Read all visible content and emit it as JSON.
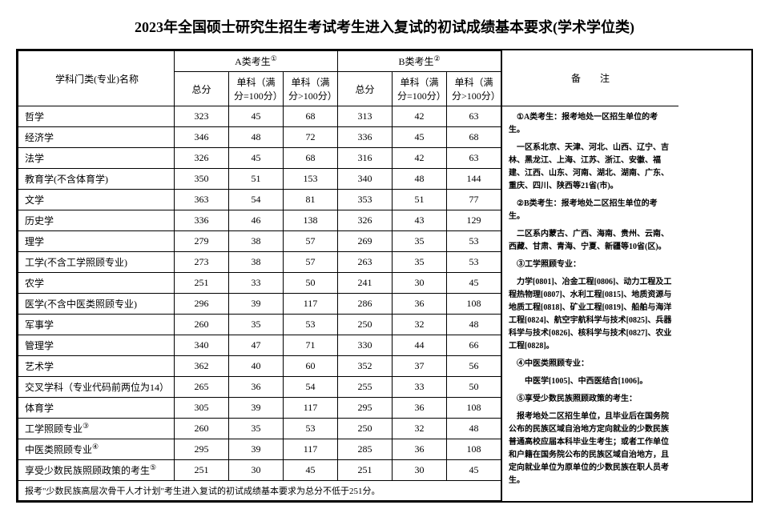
{
  "title": "2023年全国硕士研究生招生考试考生进入复试的初试成绩基本要求(学术学位类)",
  "headers": {
    "subject": "学科门类(专业)名称",
    "groupA": "A类考生",
    "groupB": "B类考生",
    "total": "总分",
    "sub100": "单科（满分=100分）",
    "subOver": "单科（满分>100分）",
    "notes": "备注",
    "sup1": "①",
    "sup2": "②"
  },
  "rows": [
    {
      "name": "哲学",
      "a": [
        323,
        45,
        68
      ],
      "b": [
        313,
        42,
        63
      ]
    },
    {
      "name": "经济学",
      "a": [
        346,
        48,
        72
      ],
      "b": [
        336,
        45,
        68
      ]
    },
    {
      "name": "法学",
      "a": [
        326,
        45,
        68
      ],
      "b": [
        316,
        42,
        63
      ]
    },
    {
      "name": "教育学(不含体育学)",
      "a": [
        350,
        51,
        153
      ],
      "b": [
        340,
        48,
        144
      ]
    },
    {
      "name": "文学",
      "a": [
        363,
        54,
        81
      ],
      "b": [
        353,
        51,
        77
      ]
    },
    {
      "name": "历史学",
      "a": [
        336,
        46,
        138
      ],
      "b": [
        326,
        43,
        129
      ]
    },
    {
      "name": "理学",
      "a": [
        279,
        38,
        57
      ],
      "b": [
        269,
        35,
        53
      ]
    },
    {
      "name": "工学(不含工学照顾专业)",
      "a": [
        273,
        38,
        57
      ],
      "b": [
        263,
        35,
        53
      ]
    },
    {
      "name": "农学",
      "a": [
        251,
        33,
        50
      ],
      "b": [
        241,
        30,
        45
      ]
    },
    {
      "name": "医学(不含中医类照顾专业)",
      "a": [
        296,
        39,
        117
      ],
      "b": [
        286,
        36,
        108
      ]
    },
    {
      "name": "军事学",
      "a": [
        260,
        35,
        53
      ],
      "b": [
        250,
        32,
        48
      ]
    },
    {
      "name": "管理学",
      "a": [
        340,
        47,
        71
      ],
      "b": [
        330,
        44,
        66
      ]
    },
    {
      "name": "艺术学",
      "a": [
        362,
        40,
        60
      ],
      "b": [
        352,
        37,
        56
      ]
    },
    {
      "name": "交叉学科（专业代码前两位为14）",
      "a": [
        265,
        36,
        54
      ],
      "b": [
        255,
        33,
        50
      ]
    },
    {
      "name": "体育学",
      "a": [
        305,
        39,
        117
      ],
      "b": [
        295,
        36,
        108
      ]
    },
    {
      "name": "工学照顾专业",
      "sup": "③",
      "a": [
        260,
        35,
        53
      ],
      "b": [
        250,
        32,
        48
      ]
    },
    {
      "name": "中医类照顾专业",
      "sup": "④",
      "a": [
        295,
        39,
        117
      ],
      "b": [
        285,
        36,
        108
      ]
    },
    {
      "name": "享受少数民族照顾政策的考生",
      "sup": "⑤",
      "a": [
        251,
        30,
        45
      ],
      "b": [
        251,
        30,
        45
      ]
    }
  ],
  "footnote": "报考\"少数民族高层次骨干人才计划\"考生进入复试的初试成绩基本要求为总分不低于251分。",
  "notes": {
    "n1h": "①A类考生：报考地处一区招生单位的考生。",
    "n1b": "一区系北京、天津、河北、山西、辽宁、吉林、黑龙江、上海、江苏、浙江、安徽、福建、江西、山东、河南、湖北、湖南、广东、重庆、四川、陕西等21省(市)。",
    "n2h": "②B类考生：报考地处二区招生单位的考生。",
    "n2b": "二区系内蒙古、广西、海南、贵州、云南、西藏、甘肃、青海、宁夏、新疆等10省(区)。",
    "n3h": "③工学照顾专业：",
    "n3b": "力学[0801]、冶金工程[0806]、动力工程及工程热物理[0807]、水利工程[0815]、地质资源与地质工程[0818]、矿业工程[0819]、船舶与海洋工程[0824]、航空宇航科学与技术[0825]、兵器科学与技术[0826]、核科学与技术[0827]、农业工程[0828]。",
    "n4h": "④中医类照顾专业：",
    "n4b": "中医学[1005]、中西医结合[1006]。",
    "n5h": "⑤享受少数民族照顾政策的考生：",
    "n5b": "报考地处二区招生单位，且毕业后在国务院公布的民族区域自治地方定向就业的少数民族普通高校应届本科毕业生考生；或者工作单位和户籍在国务院公布的民族区域自治地方，且定向就业单位为原单位的少数民族在职人员考生。"
  },
  "style": {
    "bg": "#ffffff",
    "fg": "#000000",
    "border": "#000000",
    "title_fontsize": 18,
    "body_fontsize": 12,
    "notes_fontsize": 10,
    "col_widths": {
      "subject": 180,
      "score": 55,
      "notes": 220
    }
  }
}
